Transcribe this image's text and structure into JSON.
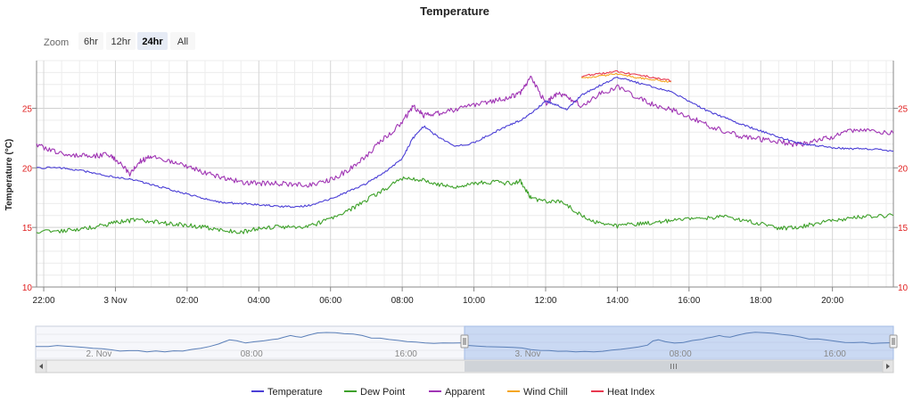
{
  "chart_data": {
    "type": "line",
    "title": "Temperature",
    "ylabel": "Temperature (°C)",
    "ylim": [
      10,
      29
    ],
    "y_ticks": [
      10,
      15,
      20,
      25
    ],
    "x_tick_labels": [
      "22:00",
      "3 Nov",
      "02:00",
      "04:00",
      "06:00",
      "08:00",
      "10:00",
      "12:00",
      "14:00",
      "16:00",
      "18:00",
      "20:00"
    ],
    "x_tick_hours": [
      22,
      24,
      26,
      28,
      30,
      32,
      34,
      36,
      38,
      40,
      42,
      44
    ],
    "x_range_hours": [
      21.8,
      45.7
    ],
    "grid": true,
    "legend_position": "bottom",
    "series": [
      {
        "name": "Temperature",
        "color": "#4b3fd6",
        "x": [
          21.8,
          22.5,
          23.0,
          23.5,
          24.0,
          24.5,
          25.0,
          25.5,
          26.0,
          26.5,
          27.0,
          27.5,
          28.0,
          28.5,
          29.0,
          29.5,
          30.0,
          30.5,
          31.0,
          31.5,
          32.0,
          32.3,
          32.6,
          33.0,
          33.5,
          34.0,
          34.5,
          35.0,
          35.3,
          35.6,
          36.0,
          36.3,
          36.6,
          37.0,
          37.5,
          38.0,
          38.5,
          39.0,
          39.5,
          40.0,
          40.5,
          41.0,
          41.5,
          42.0,
          42.5,
          43.0,
          43.5,
          44.0,
          44.5,
          45.0,
          45.7
        ],
        "values": [
          20.0,
          20.0,
          19.8,
          19.5,
          19.2,
          19.0,
          18.6,
          18.2,
          17.8,
          17.4,
          17.1,
          17.0,
          16.9,
          16.8,
          16.7,
          16.9,
          17.4,
          18.0,
          18.7,
          19.6,
          20.8,
          22.5,
          23.5,
          22.6,
          21.8,
          22.1,
          22.9,
          23.6,
          24.0,
          24.6,
          25.6,
          25.3,
          24.9,
          26.1,
          26.9,
          27.6,
          27.2,
          26.8,
          26.4,
          25.6,
          24.8,
          24.2,
          23.6,
          23.1,
          22.6,
          22.1,
          21.9,
          21.7,
          21.6,
          21.6,
          21.4
        ]
      },
      {
        "name": "Dew Point",
        "color": "#3ea12a",
        "x": [
          21.8,
          22.5,
          23.0,
          23.5,
          24.0,
          24.5,
          25.0,
          25.5,
          26.0,
          26.5,
          27.0,
          27.5,
          28.0,
          28.5,
          29.0,
          29.5,
          30.0,
          30.5,
          31.0,
          31.5,
          32.0,
          32.5,
          33.0,
          33.5,
          34.0,
          34.5,
          35.0,
          35.3,
          35.6,
          36.0,
          36.5,
          37.0,
          37.5,
          38.0,
          38.5,
          39.0,
          39.5,
          40.0,
          40.5,
          41.0,
          41.5,
          42.0,
          42.5,
          43.0,
          43.5,
          44.0,
          44.5,
          45.0,
          45.7
        ],
        "values": [
          14.7,
          14.7,
          14.8,
          15.1,
          15.4,
          15.6,
          15.5,
          15.3,
          15.2,
          15.0,
          14.8,
          14.6,
          14.9,
          15.1,
          15.0,
          15.2,
          15.7,
          16.4,
          17.3,
          18.2,
          19.1,
          19.0,
          18.6,
          18.4,
          18.7,
          18.8,
          18.7,
          18.9,
          17.4,
          17.2,
          17.1,
          16.0,
          15.3,
          15.1,
          15.3,
          15.4,
          15.6,
          15.7,
          15.8,
          15.9,
          15.6,
          15.3,
          14.9,
          15.0,
          15.3,
          15.6,
          15.8,
          15.9,
          16.0
        ]
      },
      {
        "name": "Apparent",
        "color": "#a035b4",
        "x": [
          21.8,
          22.3,
          22.8,
          23.3,
          23.8,
          24.1,
          24.4,
          24.7,
          25.0,
          25.5,
          26.0,
          26.5,
          27.0,
          27.5,
          28.0,
          28.5,
          29.0,
          29.5,
          30.0,
          30.5,
          31.0,
          31.5,
          32.0,
          32.3,
          32.6,
          33.0,
          33.5,
          34.0,
          34.5,
          35.0,
          35.3,
          35.6,
          36.0,
          36.3,
          36.6,
          37.0,
          37.5,
          38.0,
          38.5,
          39.0,
          39.5,
          40.0,
          40.5,
          41.0,
          41.5,
          42.0,
          42.5,
          43.0,
          43.5,
          44.0,
          44.5,
          45.0,
          45.7
        ],
        "values": [
          21.9,
          21.4,
          21.1,
          21.0,
          21.1,
          20.5,
          19.5,
          20.6,
          20.9,
          20.6,
          20.1,
          19.6,
          19.2,
          18.8,
          18.7,
          18.7,
          18.6,
          18.6,
          19.0,
          19.8,
          21.0,
          22.5,
          23.8,
          25.2,
          24.4,
          24.6,
          24.9,
          25.3,
          25.6,
          25.9,
          26.3,
          27.6,
          25.4,
          26.2,
          26.0,
          25.2,
          26.2,
          26.8,
          26.0,
          25.3,
          24.9,
          24.3,
          23.6,
          23.1,
          22.6,
          22.4,
          22.2,
          21.9,
          22.2,
          22.6,
          23.1,
          23.1,
          22.9
        ]
      },
      {
        "name": "Wind Chill",
        "color": "#f5a623",
        "x": [
          37.0,
          37.5,
          38.0,
          38.5,
          39.0,
          39.5
        ],
        "values": [
          27.5,
          27.7,
          27.9,
          27.6,
          27.4,
          27.2
        ]
      },
      {
        "name": "Heat Index",
        "color": "#e8384f",
        "x": [
          37.0,
          37.5,
          38.0,
          38.5,
          39.0,
          39.5
        ],
        "values": [
          27.7,
          27.9,
          28.1,
          27.8,
          27.6,
          27.3
        ]
      }
    ],
    "navigator": {
      "labels": [
        "2. Nov",
        "08:00",
        "16:00",
        "3. Nov",
        "08:00",
        "16:00"
      ],
      "selected_fraction": [
        0.5,
        1.0
      ]
    }
  },
  "zoom": {
    "label": "Zoom",
    "buttons": [
      "6hr",
      "12hr",
      "24hr",
      "All"
    ],
    "active": "24hr"
  }
}
